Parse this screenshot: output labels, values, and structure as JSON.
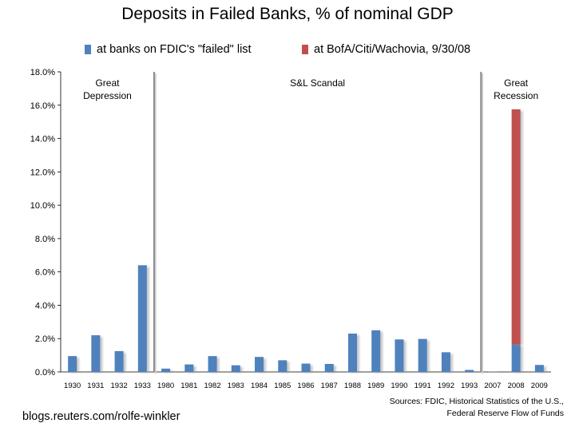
{
  "chart_data": {
    "type": "bar",
    "stacked": true,
    "title": "Deposits in Failed Banks, % of nominal GDP",
    "xlabel": "",
    "ylabel": "",
    "categories": [
      "1930",
      "1931",
      "1932",
      "1933",
      "1980",
      "1981",
      "1982",
      "1983",
      "1984",
      "1985",
      "1986",
      "1987",
      "1988",
      "1989",
      "1990",
      "1991",
      "1992",
      "1993",
      "2007",
      "2008",
      "2009"
    ],
    "series": [
      {
        "name": "at banks on FDIC's \"failed\" list",
        "color": "#4f81bd",
        "values": [
          0.95,
          2.2,
          1.25,
          6.4,
          0.2,
          0.45,
          0.95,
          0.4,
          0.9,
          0.7,
          0.5,
          0.48,
          2.3,
          2.5,
          1.95,
          1.98,
          1.18,
          0.12,
          0.02,
          1.65,
          0.42
        ]
      },
      {
        "name": "at BofA/Citi/Wachovia, 9/30/08",
        "color": "#c0504d",
        "values": [
          0,
          0,
          0,
          0,
          0,
          0,
          0,
          0,
          0,
          0,
          0,
          0,
          0,
          0,
          0,
          0,
          0,
          0,
          0,
          14.1,
          0
        ]
      }
    ],
    "ylim": [
      0,
      18
    ],
    "yticks": [
      "0.0%",
      "2.0%",
      "4.0%",
      "6.0%",
      "8.0%",
      "10.0%",
      "12.0%",
      "14.0%",
      "16.0%",
      "18.0%"
    ],
    "legend_position": "top",
    "grid": false,
    "annotations": [
      {
        "text": "Great Depression",
        "lines": [
          "Great",
          "Depression"
        ]
      },
      {
        "text": "S&L Scandal",
        "lines": [
          "S&L Scandal"
        ]
      },
      {
        "text": "Great Recession",
        "lines": [
          "Great",
          "Recession"
        ]
      }
    ],
    "dividers_after": [
      "1933",
      "1993"
    ]
  },
  "source_lines": [
    "Sources: FDIC, Historical Statistics of the U.S.,",
    "Federal Reserve Flow of Funds"
  ],
  "credit": "blogs.reuters.com/rolfe-winkler"
}
